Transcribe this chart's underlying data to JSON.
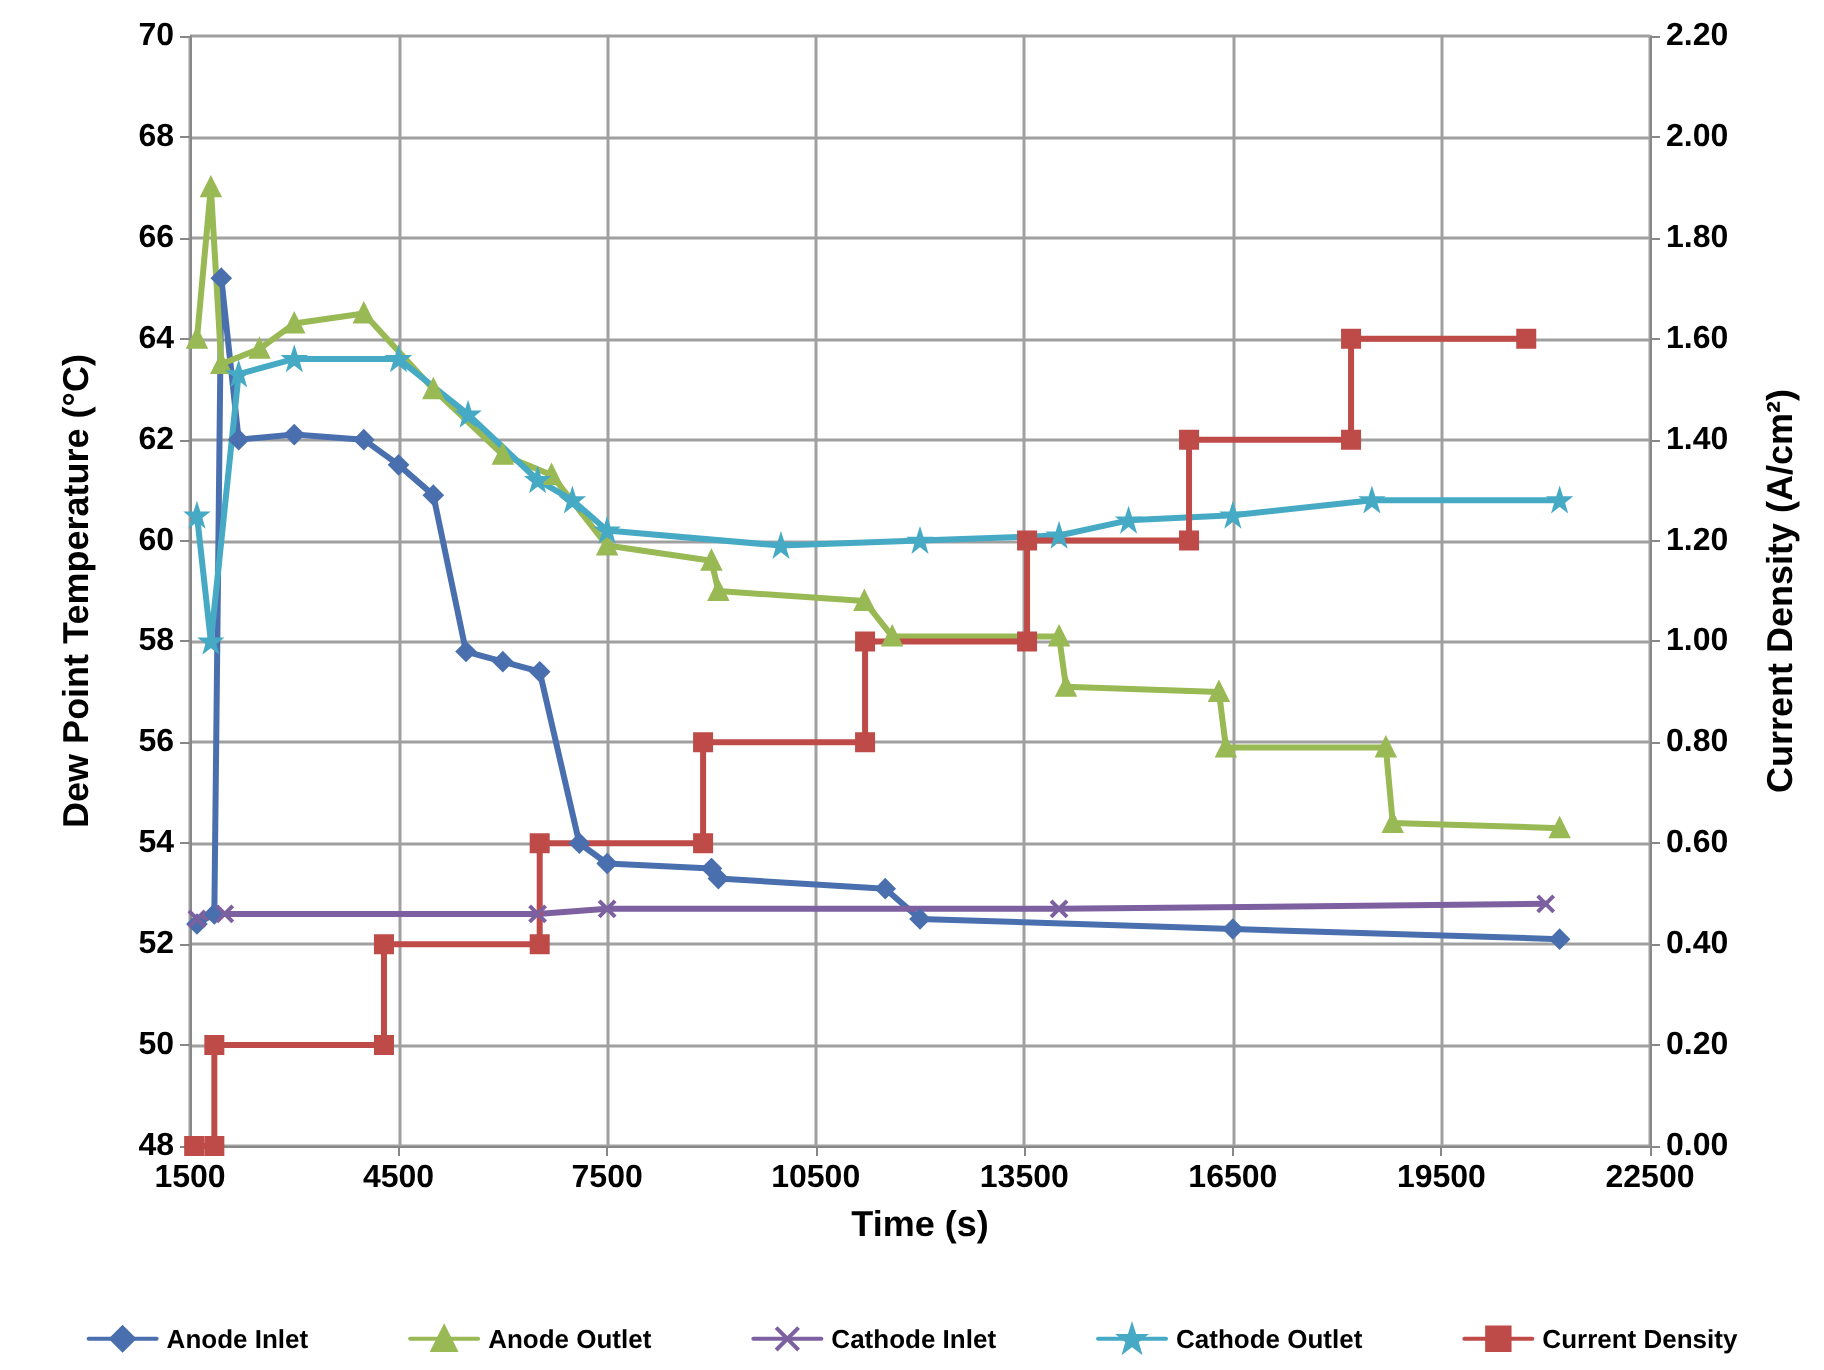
{
  "chart_data": {
    "type": "line",
    "xlabel": "Time (s)",
    "ylabel": "Dew Point Temperature (°C)",
    "y2label": "Current Density (A/cm²)",
    "xlim": [
      1500,
      22500
    ],
    "xticks": [
      1500,
      4500,
      7500,
      10500,
      13500,
      16500,
      19500,
      22500
    ],
    "ylim": [
      48,
      70
    ],
    "yticks": [
      48,
      50,
      52,
      54,
      56,
      58,
      60,
      62,
      64,
      66,
      68,
      70
    ],
    "y2lim": [
      0,
      2.2
    ],
    "y2ticks": [
      {
        "value": 0,
        "label": "0.00"
      },
      {
        "value": 0.2,
        "label": "0.20"
      },
      {
        "value": 0.4,
        "label": "0.40"
      },
      {
        "value": 0.6,
        "label": "0.60"
      },
      {
        "value": 0.8,
        "label": "0.80"
      },
      {
        "value": 1.0,
        "label": "1.00"
      },
      {
        "value": 1.2,
        "label": "1.20"
      },
      {
        "value": 1.4,
        "label": "1.40"
      },
      {
        "value": 1.6,
        "label": "1.60"
      },
      {
        "value": 1.8,
        "label": "1.80"
      },
      {
        "value": 2.0,
        "label": "2.00"
      },
      {
        "value": 2.2,
        "label": "2.20"
      }
    ],
    "grid": true,
    "legend": "bottom",
    "series": [
      {
        "name": "Anode Inlet",
        "color": "#4a6fae",
        "marker": "diamond",
        "x": [
          1600,
          1850,
          1950,
          2200,
          3000,
          4000,
          4500,
          5000,
          5470,
          6000,
          6530,
          7100,
          7500,
          9000,
          9100,
          11500,
          12000,
          16500,
          21200
        ],
        "values": [
          52.4,
          52.6,
          65.2,
          62.0,
          62.1,
          62.0,
          61.5,
          60.9,
          57.8,
          57.6,
          57.4,
          54.0,
          53.6,
          53.5,
          53.3,
          53.1,
          52.5,
          52.3,
          52.1
        ]
      },
      {
        "name": "Anode Outlet",
        "color": "#98b954",
        "marker": "triangle",
        "x": [
          1600,
          1800,
          1950,
          2500,
          3000,
          4000,
          5000,
          6000,
          6700,
          7500,
          9000,
          9100,
          11200,
          11600,
          14000,
          14100,
          16300,
          16400,
          18700,
          18800,
          21200
        ],
        "values": [
          64.0,
          67.0,
          63.5,
          63.8,
          64.3,
          64.5,
          63.0,
          61.7,
          61.3,
          59.9,
          59.6,
          59.0,
          58.8,
          58.1,
          58.1,
          57.1,
          57.0,
          55.9,
          55.9,
          54.4,
          54.3
        ]
      },
      {
        "name": "Cathode Inlet",
        "color": "#7d60a0",
        "marker": "cross",
        "x": [
          1600,
          2000,
          6500,
          7500,
          14000,
          21000
        ],
        "values": [
          52.5,
          52.6,
          52.6,
          52.7,
          52.7,
          52.8
        ]
      },
      {
        "name": "Cathode Outlet",
        "color": "#46aac5",
        "marker": "star",
        "x": [
          1600,
          1800,
          2200,
          3000,
          4500,
          5500,
          6500,
          7000,
          7500,
          10000,
          12000,
          14000,
          15000,
          16500,
          18500,
          21200
        ],
        "values": [
          60.5,
          58.0,
          63.3,
          63.6,
          63.6,
          62.5,
          61.2,
          60.8,
          60.2,
          59.9,
          60.0,
          60.1,
          60.4,
          60.5,
          60.8,
          60.8
        ]
      },
      {
        "name": "Current Density",
        "color": "#be4b48",
        "marker": "square",
        "axis": "y2",
        "x": [
          1560,
          1850,
          1850,
          4290,
          4290,
          6530,
          6530,
          8880,
          8880,
          11210,
          11210,
          13540,
          13540,
          15870,
          15870,
          18200,
          18200,
          20720
        ],
        "values": [
          0,
          0,
          0.2,
          0.2,
          0.4,
          0.4,
          0.6,
          0.6,
          0.8,
          0.8,
          1.0,
          1.0,
          1.2,
          1.2,
          1.4,
          1.4,
          1.6,
          1.6
        ]
      }
    ]
  }
}
